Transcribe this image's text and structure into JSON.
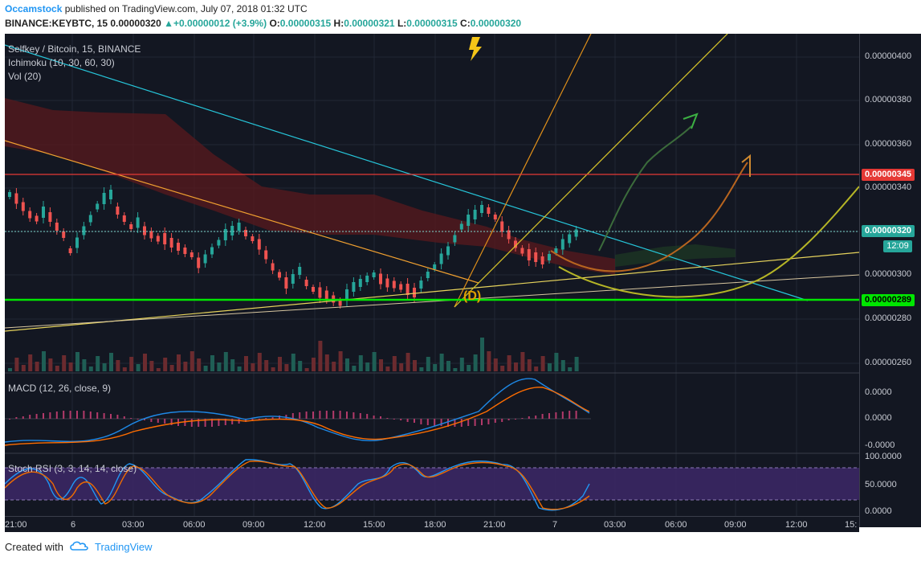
{
  "header": {
    "author": "Occamstock",
    "published": "published on TradingView.com, July 07, 2018 01:32 UTC",
    "symbol": "BINANCE:KEYBTC, 15",
    "last": "0.00000320",
    "change": "+0.00000012 (+3.9%)",
    "o_label": "O:",
    "o": "0.00000315",
    "h_label": "H:",
    "h": "0.00000321",
    "l_label": "L:",
    "l": "0.00000315",
    "c_label": "C:",
    "c": "0.00000320"
  },
  "panes": {
    "main_title": "Selfkey / Bitcoin, 15, BINANCE",
    "ichimoku": "Ichimoku (10, 30, 60, 30)",
    "vol": "Vol (20)",
    "macd": "MACD (12, 26, close, 9)",
    "stoch": "Stoch RSI (3, 3, 14, 14, close)",
    "annotation": "(D)"
  },
  "price_axis": [
    "0.00000400",
    "0.00000380",
    "0.00000360",
    "0.00000340",
    "0.00000300",
    "0.00000280",
    "0.00000260"
  ],
  "macd_axis": [
    "0.0000",
    "0.0000",
    "-0.0000"
  ],
  "stoch_axis": [
    "100.0000",
    "50.0000",
    "0.0000"
  ],
  "tags": {
    "red_level": "0.00000345",
    "last_price": "0.00000320",
    "countdown": "12:09",
    "green_level": "0.00000289"
  },
  "time_axis": [
    "21:00",
    "6",
    "03:00",
    "06:00",
    "09:00",
    "12:00",
    "15:00",
    "18:00",
    "21:00",
    "7",
    "03:00",
    "06:00",
    "09:00",
    "12:00",
    "15:"
  ],
  "footer": {
    "created_with": "Created with",
    "brand": "TradingView"
  },
  "colors": {
    "background": "#131722",
    "up": "#26a69a",
    "down": "#ef5350",
    "support": "#00e600",
    "resistance": "#e53935",
    "trend": "#26c6da"
  }
}
